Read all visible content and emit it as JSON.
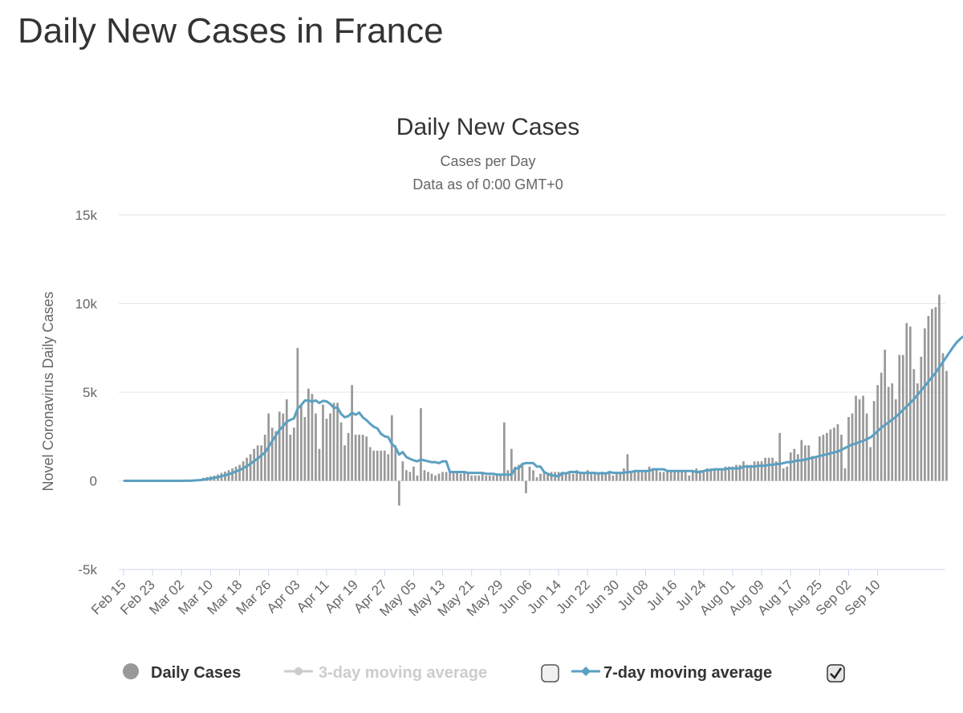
{
  "page": {
    "title": "Daily New Cases in France"
  },
  "chart_data": {
    "type": "bar",
    "title": "Daily New Cases",
    "subtitle": "Cases per Day",
    "subtitle2": "Data as of 0:00 GMT+0",
    "ylabel": "Novel Coronavirus Daily Cases",
    "xlabel": "",
    "ylim": [
      -5000,
      15000
    ],
    "yticks": [
      {
        "v": 15000,
        "label": "15k"
      },
      {
        "v": 10000,
        "label": "10k"
      },
      {
        "v": 5000,
        "label": "5k"
      },
      {
        "v": 0,
        "label": "0"
      },
      {
        "v": -5000,
        "label": "-5k"
      }
    ],
    "grid": true,
    "start_date": "Feb 15",
    "xtick_labels": [
      "Feb 15",
      "Feb 23",
      "Mar 02",
      "Mar 10",
      "Mar 18",
      "Mar 26",
      "Apr 03",
      "Apr 11",
      "Apr 19",
      "Apr 27",
      "May 05",
      "May 13",
      "May 21",
      "May 29",
      "Jun 06",
      "Jun 14",
      "Jun 22",
      "Jun 30",
      "Jul 08",
      "Jul 16",
      "Jul 24",
      "Aug 01",
      "Aug 09",
      "Aug 17",
      "Aug 25",
      "Sep 02",
      "Sep 10"
    ],
    "xtick_interval_days": 8,
    "series": [
      {
        "name": "Daily Cases",
        "type": "bar",
        "color": "#999999",
        "visible": true,
        "values": [
          0,
          0,
          0,
          0,
          0,
          0,
          0,
          0,
          0,
          0,
          0,
          0,
          0,
          0,
          2,
          4,
          6,
          10,
          20,
          50,
          90,
          100,
          170,
          210,
          250,
          300,
          360,
          450,
          520,
          600,
          700,
          800,
          900,
          1100,
          1300,
          1500,
          1800,
          2000,
          2000,
          2600,
          3800,
          3000,
          2800,
          3900,
          3800,
          4600,
          2600,
          3000,
          7500,
          4300,
          3600,
          5200,
          4900,
          3800,
          1800,
          4300,
          3500,
          3800,
          4400,
          4400,
          3300,
          2000,
          2700,
          5400,
          2600,
          2600,
          2600,
          2500,
          1900,
          1700,
          1700,
          1700,
          1700,
          1500,
          3700,
          2000,
          -1400,
          1100,
          600,
          500,
          800,
          300,
          4100,
          600,
          500,
          400,
          300,
          400,
          500,
          500,
          500,
          500,
          500,
          400,
          500,
          400,
          300,
          300,
          300,
          400,
          300,
          300,
          300,
          300,
          400,
          3300,
          600,
          1800,
          800,
          900,
          900,
          -700,
          800,
          600,
          200,
          400,
          500,
          400,
          500,
          500,
          500,
          500,
          500,
          500,
          400,
          600,
          500,
          400,
          600,
          500,
          500,
          500,
          500,
          500,
          500,
          300,
          500,
          500,
          700,
          1500,
          500,
          500,
          500,
          500,
          600,
          800,
          600,
          600,
          500,
          500,
          500,
          500,
          600,
          600,
          600,
          600,
          300,
          500,
          700,
          600,
          600,
          700,
          700,
          600,
          700,
          700,
          800,
          800,
          800,
          900,
          900,
          1100,
          900,
          900,
          1100,
          1100,
          1100,
          1300,
          1300,
          1300,
          1100,
          2700,
          700,
          800,
          1600,
          1800,
          1500,
          2300,
          2000,
          2000,
          1400,
          1300,
          2500,
          2600,
          2700,
          2900,
          3000,
          3200,
          2600,
          700,
          3600,
          3800,
          4800,
          4600,
          4800,
          3800,
          1900,
          4500,
          5400,
          6100,
          7400,
          5300,
          5500,
          4600,
          7100,
          7100,
          8900,
          8700,
          6300,
          5500,
          7000,
          8600,
          9300,
          9700,
          9800,
          10500,
          7200,
          6200
        ]
      },
      {
        "name": "3-day moving average",
        "type": "line",
        "color": "#cccccc",
        "visible": false
      },
      {
        "name": "7-day moving average",
        "type": "line",
        "color": "#5aa0c2",
        "visible": true,
        "values": [
          0,
          0,
          0,
          0,
          0,
          0,
          0,
          0,
          0,
          0,
          0,
          0,
          0,
          0,
          0,
          1,
          2,
          3,
          6,
          13,
          26,
          40,
          64,
          95,
          130,
          165,
          210,
          260,
          310,
          370,
          440,
          530,
          610,
          710,
          830,
          960,
          1110,
          1260,
          1430,
          1600,
          1910,
          2250,
          2550,
          2880,
          3080,
          3330,
          3440,
          3520,
          4070,
          4270,
          4530,
          4540,
          4460,
          4540,
          4390,
          4510,
          4480,
          4340,
          4120,
          4130,
          3770,
          3590,
          3650,
          3840,
          3730,
          3850,
          3580,
          3420,
          3220,
          3050,
          2960,
          2650,
          2510,
          2460,
          2080,
          1900,
          1480,
          1620,
          1340,
          1240,
          1160,
          1100,
          1200,
          1150,
          1100,
          1050,
          1050,
          1000,
          1100,
          1100,
          500,
          500,
          500,
          500,
          500,
          450,
          450,
          450,
          450,
          450,
          400,
          400,
          400,
          350,
          350,
          350,
          350,
          350,
          700,
          700,
          950,
          1000,
          1000,
          1000,
          800,
          800,
          500,
          400,
          300,
          300,
          250,
          450,
          400,
          500,
          500,
          500,
          450,
          450,
          450,
          450,
          450,
          400,
          450,
          400,
          500,
          450,
          450,
          450,
          450,
          500,
          500,
          550,
          550,
          550,
          550,
          550,
          650,
          650,
          650,
          650,
          550,
          550,
          550,
          550,
          550,
          550,
          550,
          550,
          500,
          500,
          550,
          600,
          600,
          650,
          650,
          650,
          650,
          700,
          700,
          700,
          700,
          800,
          800,
          800,
          800,
          850,
          850,
          850,
          900,
          900,
          950,
          950,
          1000,
          1050,
          1050,
          1100,
          1150,
          1150,
          1200,
          1250,
          1300,
          1350,
          1400,
          1450,
          1500,
          1550,
          1600,
          1650,
          1750,
          1850,
          1950,
          2050,
          2100,
          2200,
          2250,
          2350,
          2450,
          2600,
          2800,
          3000,
          3150,
          3300,
          3450,
          3600,
          3800,
          4000,
          4200,
          4400,
          4600,
          4850,
          5100,
          5350,
          5600,
          5850,
          6100,
          6400,
          6700,
          7000,
          7300,
          7600,
          7850,
          8050,
          8200,
          8250,
          8400
        ]
      }
    ]
  },
  "legend": {
    "items": [
      {
        "label": "Daily Cases",
        "icon": "circle-marker-icon",
        "color": "#999999",
        "checked": true
      },
      {
        "label": "3-day moving average",
        "icon": "line-marker-icon",
        "color": "#cccccc",
        "checked": false
      },
      {
        "label": "7-day moving average",
        "icon": "line-marker-icon",
        "color": "#5aa0c2",
        "checked": true
      }
    ]
  },
  "colors": {
    "title": "#333333",
    "text": "#666666",
    "grid": "#e6e6e6",
    "axis": "#ccd6eb"
  }
}
